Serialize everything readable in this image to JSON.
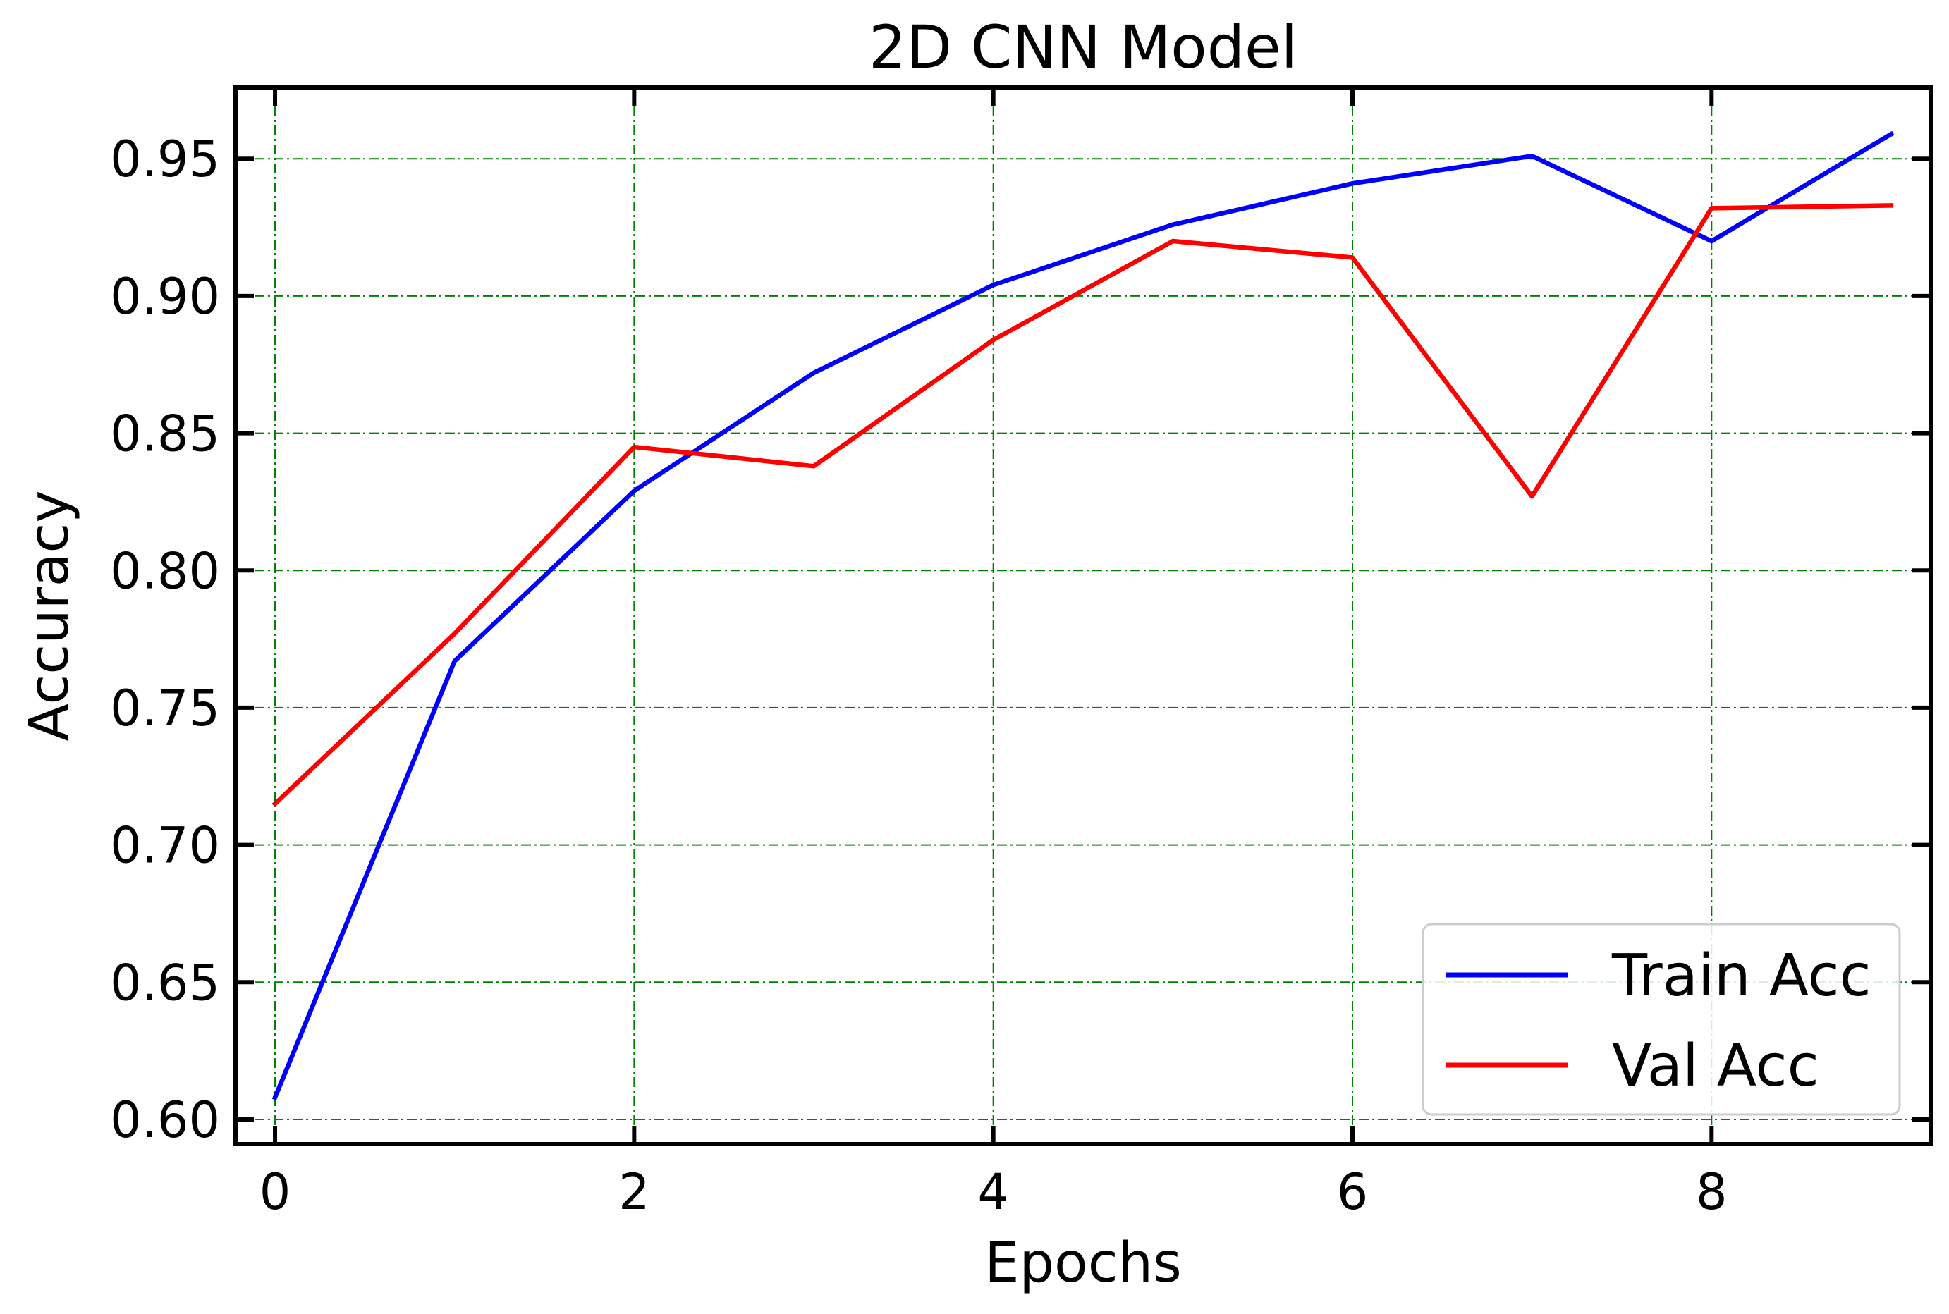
{
  "chart_data": {
    "type": "line",
    "title": "2D CNN Model",
    "xlabel": "Epochs",
    "ylabel": "Accuracy",
    "x": [
      0,
      1,
      2,
      3,
      4,
      5,
      6,
      7,
      8,
      9
    ],
    "xlim": [
      -0.22,
      9.22
    ],
    "ylim": [
      0.591,
      0.976
    ],
    "xticks": [
      0,
      2,
      4,
      6,
      8
    ],
    "xtick_labels": [
      "0",
      "2",
      "4",
      "6",
      "8"
    ],
    "yticks": [
      0.6,
      0.65,
      0.7,
      0.75,
      0.8,
      0.85,
      0.9,
      0.95
    ],
    "ytick_labels": [
      "0.60",
      "0.65",
      "0.70",
      "0.75",
      "0.80",
      "0.85",
      "0.90",
      "0.95"
    ],
    "grid": true,
    "legend_position": "lower-right",
    "series": [
      {
        "name": "Train Acc",
        "color": "#0000ff",
        "values": [
          0.608,
          0.767,
          0.829,
          0.872,
          0.904,
          0.926,
          0.941,
          0.951,
          0.92,
          0.959
        ]
      },
      {
        "name": "Val Acc",
        "color": "#ff0000",
        "values": [
          0.715,
          0.777,
          0.845,
          0.838,
          0.884,
          0.92,
          0.914,
          0.827,
          0.932,
          0.933
        ]
      }
    ]
  }
}
